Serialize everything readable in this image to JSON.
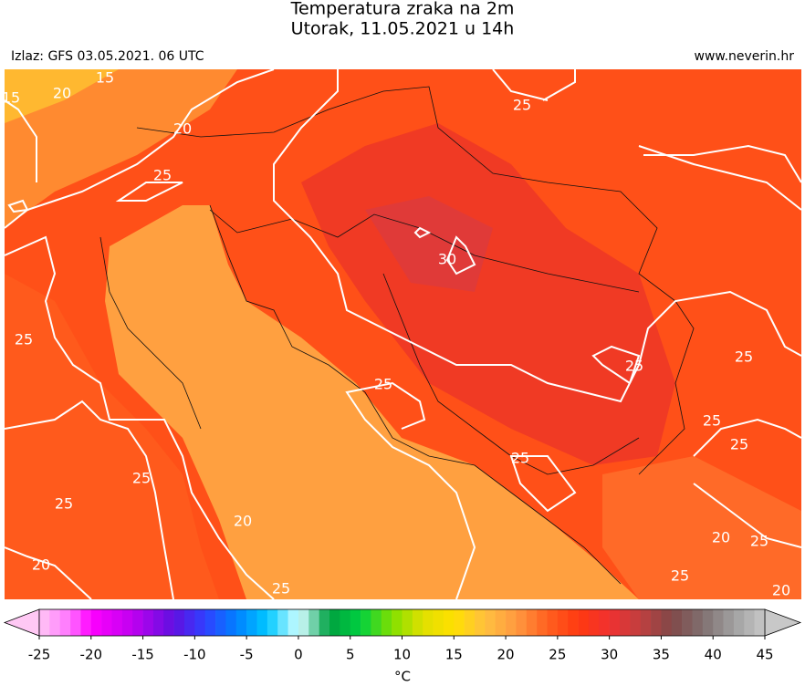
{
  "header": {
    "title": "Temperatura zraka na 2m",
    "subtitle": "Utorak, 11.05.2021 u 14h",
    "source": "Izlaz: GFS 03.05.2021. 06 UTC",
    "website": "www.neverin.hr"
  },
  "map": {
    "contour_labels": [
      20,
      15,
      15,
      20,
      25,
      25,
      30,
      25,
      25,
      25,
      25,
      25,
      25,
      25,
      25,
      25,
      20,
      20,
      25,
      20,
      25,
      25,
      20
    ]
  },
  "colorbar": {
    "lim": [
      -25,
      45
    ],
    "ticks": [
      -25,
      -20,
      -15,
      -10,
      -5,
      0,
      5,
      10,
      15,
      20,
      25,
      30,
      35,
      40,
      45
    ],
    "unit": "°C",
    "stops": [
      {
        "value": -25,
        "color": "#ffc8f4"
      },
      {
        "value": -22,
        "color": "#ff70ff"
      },
      {
        "value": -20,
        "color": "#ff00ff"
      },
      {
        "value": -16,
        "color": "#c000f0"
      },
      {
        "value": -12,
        "color": "#6010e0"
      },
      {
        "value": -9,
        "color": "#3040ff"
      },
      {
        "value": -6,
        "color": "#0080ff"
      },
      {
        "value": -3,
        "color": "#00c8ff"
      },
      {
        "value": 0,
        "color": "#d0ffff"
      },
      {
        "value": 1,
        "color": "#a0e0d0"
      },
      {
        "value": 2,
        "color": "#40c080"
      },
      {
        "value": 3,
        "color": "#00a040"
      },
      {
        "value": 6,
        "color": "#00d040"
      },
      {
        "value": 9,
        "color": "#80e000"
      },
      {
        "value": 12,
        "color": "#e0e000"
      },
      {
        "value": 15,
        "color": "#ffe000"
      },
      {
        "value": 18,
        "color": "#ffc040"
      },
      {
        "value": 21,
        "color": "#ff9a40"
      },
      {
        "value": 24,
        "color": "#ff6020"
      },
      {
        "value": 27,
        "color": "#ff3a10"
      },
      {
        "value": 30,
        "color": "#f03030"
      },
      {
        "value": 33,
        "color": "#c04040"
      },
      {
        "value": 36,
        "color": "#804848"
      },
      {
        "value": 39,
        "color": "#807070"
      },
      {
        "value": 42,
        "color": "#a0a0a0"
      },
      {
        "value": 45,
        "color": "#c8c8c8"
      }
    ]
  }
}
